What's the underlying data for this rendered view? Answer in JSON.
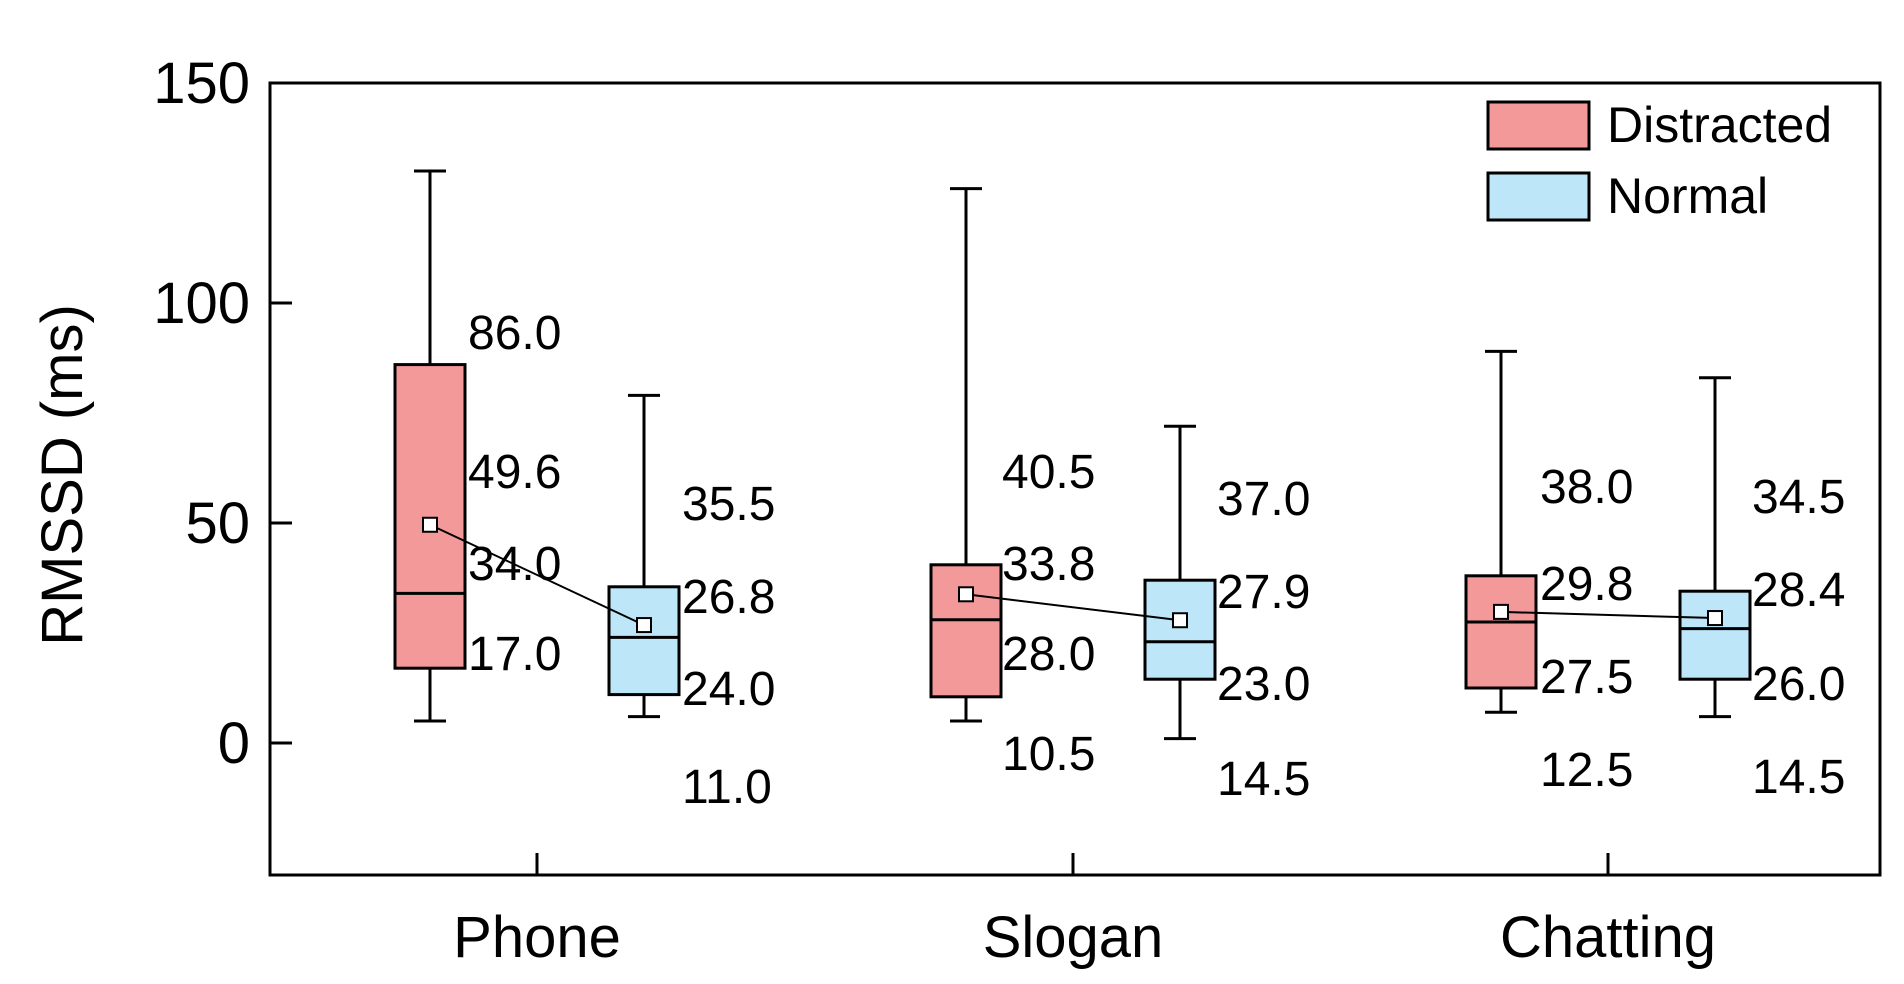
{
  "chart_data": {
    "type": "box",
    "xlabel": "",
    "ylabel": "RMSSD (ms)",
    "ylim": [
      -30,
      150
    ],
    "yticks": [
      0,
      50,
      100,
      150
    ],
    "legend_position": "top-right",
    "grid": false,
    "categories": [
      "Phone",
      "Slogan",
      "Chatting"
    ],
    "series": [
      {
        "name": "Distracted",
        "color": "#f4999a",
        "boxes": [
          {
            "category": "Phone",
            "whisker_low": 5,
            "q1": 17,
            "median": 34,
            "q3": 86,
            "whisker_high": 130,
            "mean": 49.6
          },
          {
            "category": "Slogan",
            "whisker_low": 5,
            "q1": 10.5,
            "median": 28,
            "q3": 40.5,
            "whisker_high": 126,
            "mean": 33.8
          },
          {
            "category": "Chatting",
            "whisker_low": 7,
            "q1": 12.5,
            "median": 27.5,
            "q3": 38,
            "whisker_high": 89,
            "mean": 29.8
          }
        ]
      },
      {
        "name": "Normal",
        "color": "#bde6f9",
        "boxes": [
          {
            "category": "Phone",
            "whisker_low": 6,
            "q1": 11,
            "median": 24,
            "q3": 35.5,
            "whisker_high": 79,
            "mean": 26.8
          },
          {
            "category": "Slogan",
            "whisker_low": 1,
            "q1": 14.5,
            "median": 23,
            "q3": 37,
            "whisker_high": 72,
            "mean": 27.9
          },
          {
            "category": "Chatting",
            "whisker_low": 6,
            "q1": 14.5,
            "median": 26,
            "q3": 34.5,
            "whisker_high": 83,
            "mean": 28.4
          }
        ]
      }
    ],
    "annotations": [
      {
        "category": "Phone",
        "series": "Distracted",
        "labels": [
          "86.0",
          "49.6",
          "34.0",
          "17.0"
        ]
      },
      {
        "category": "Phone",
        "series": "Normal",
        "labels": [
          "35.5",
          "26.8",
          "24.0",
          "11.0"
        ]
      },
      {
        "category": "Slogan",
        "series": "Distracted",
        "labels": [
          "40.5",
          "33.8",
          "28.0",
          "10.5"
        ]
      },
      {
        "category": "Slogan",
        "series": "Normal",
        "labels": [
          "37.0",
          "27.9",
          "23.0",
          "14.5"
        ]
      },
      {
        "category": "Chatting",
        "series": "Distracted",
        "labels": [
          "38.0",
          "29.8",
          "27.5",
          "12.5"
        ]
      },
      {
        "category": "Chatting",
        "series": "Normal",
        "labels": [
          "34.5",
          "28.4",
          "26.0",
          "14.5"
        ]
      }
    ]
  }
}
